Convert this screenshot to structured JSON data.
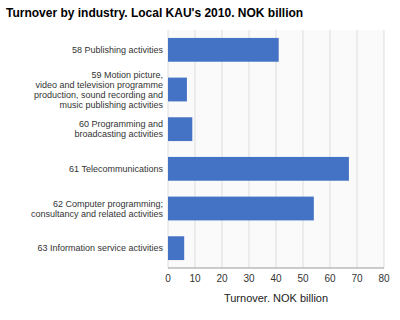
{
  "chart_data": {
    "type": "bar",
    "orientation": "horizontal",
    "title": "Turnover by industry. Local KAU's 2010. NOK billion",
    "categories": [
      "63 Information service activities",
      "62 Computer programming;\nconsultancy and related activities",
      "61 Telecommunications",
      "60 Programming and\nbroadcasting activities",
      "59 Motion picture,\nvideo and television programme\nproduction, sound recording and\nmusic publishing activities",
      "58 Publishing activities"
    ],
    "values": [
      6,
      54,
      67,
      9,
      7,
      41
    ],
    "color": "#4472C4",
    "xlabel": "Turnover. NOK billion",
    "xlim": [
      0,
      80
    ],
    "xticks": [
      0,
      10,
      20,
      30,
      40,
      50,
      60,
      70,
      80
    ],
    "grid": true
  }
}
